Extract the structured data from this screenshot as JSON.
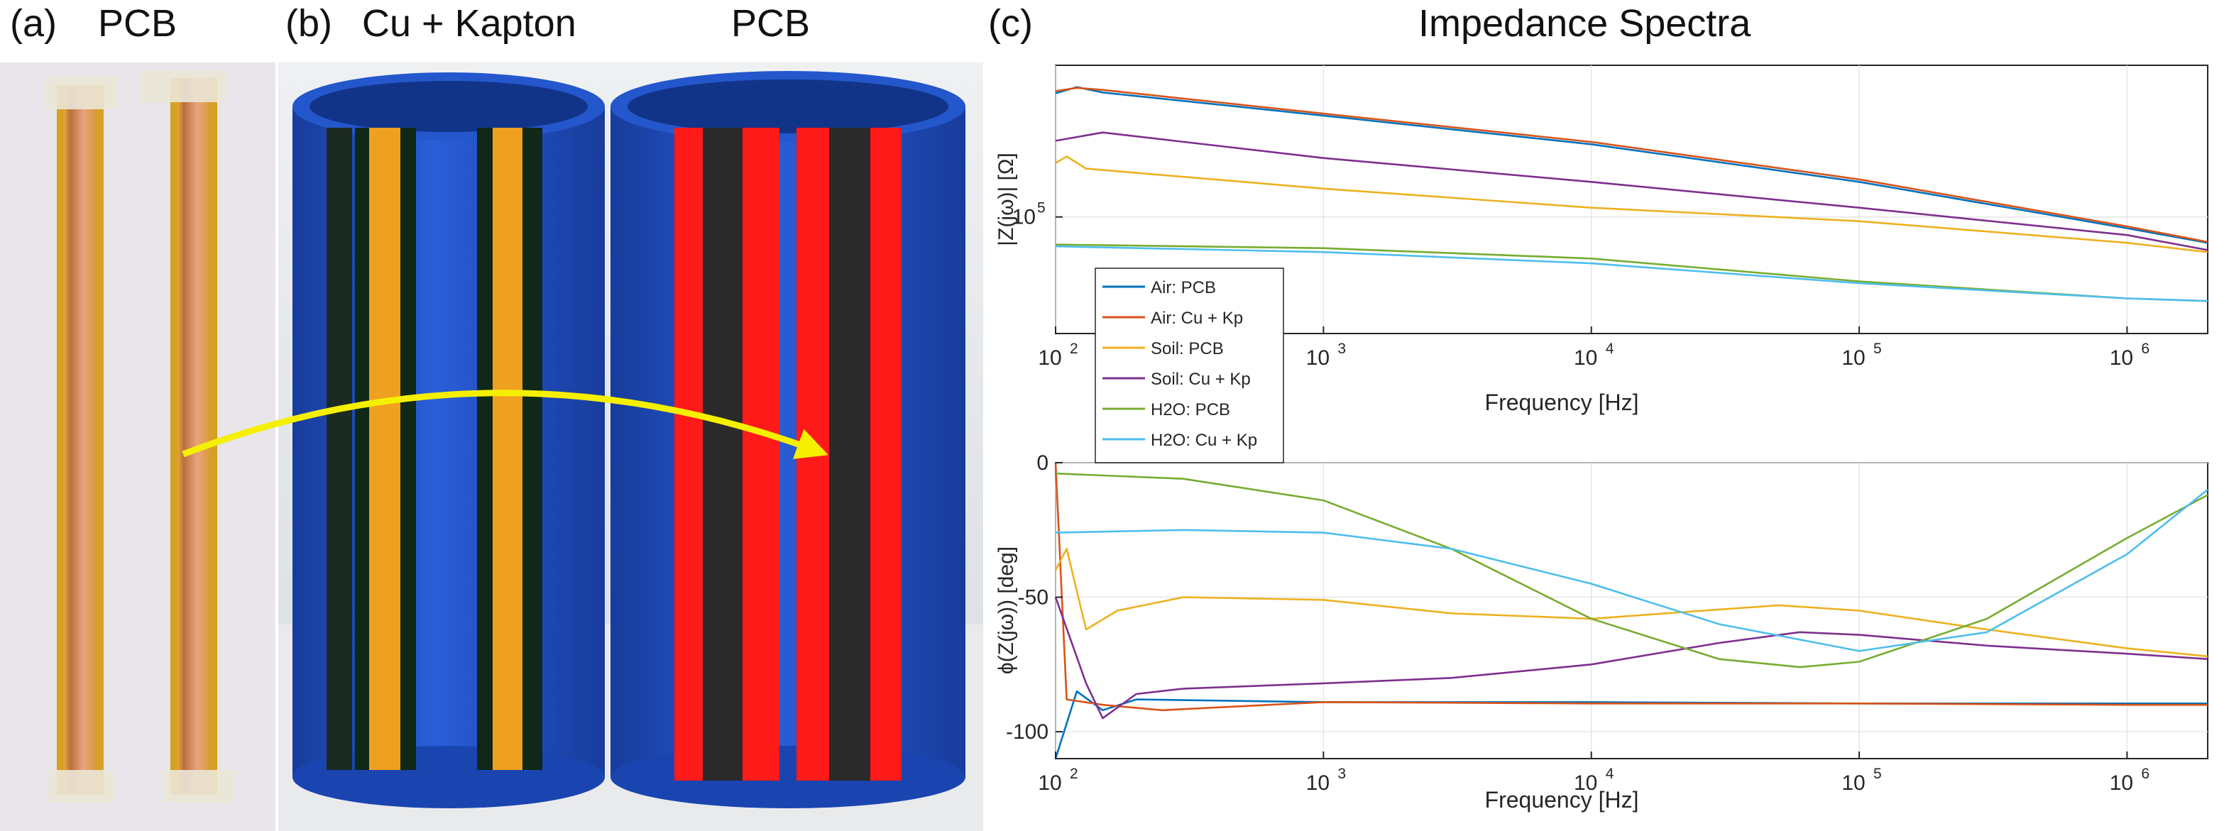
{
  "panels": {
    "a": {
      "letter": "(a)",
      "title": "PCB"
    },
    "b": {
      "letter": "(b)",
      "title_left": "Cu + Kapton",
      "title_right": "PCB"
    },
    "c": {
      "letter": "(c)",
      "title": "Impedance Spectra"
    }
  },
  "colors": {
    "air_pcb": "#0072BD",
    "air_cukp": "#D95319",
    "soil_pcb": "#EDB120",
    "soil_cukp": "#7E2F8E",
    "h2o_pcb": "#77AC30",
    "h2o_cukp": "#4DBEEE",
    "arrow": "#f5f000",
    "pipe_blue": "#1f4fc4",
    "pcb_red": "#ff1a1a",
    "kapton": "#f0a020"
  },
  "chart_data": [
    {
      "type": "line",
      "title": "",
      "xlabel": "Frequency [Hz]",
      "ylabel": "|Z(jω)| [Ω]",
      "xscale": "log",
      "yscale": "log",
      "xlim": [
        100,
        2000000
      ],
      "ylim": [
        10000,
        2000000
      ],
      "xticks": [
        {
          "base": "10",
          "exp": "2"
        },
        {
          "base": "10",
          "exp": "3"
        },
        {
          "base": "10",
          "exp": "4"
        },
        {
          "base": "10",
          "exp": "5"
        },
        {
          "base": "10",
          "exp": "6"
        }
      ],
      "yticks": [
        {
          "value": 100000,
          "base": "10",
          "exp": "5"
        }
      ],
      "legend": "upper-left",
      "series": [
        {
          "key": "air_pcb",
          "name": "Air: PCB",
          "x": [
            100,
            120,
            150,
            1000,
            10000,
            100000,
            1000000,
            2000000
          ],
          "y": [
            1150000,
            1300000,
            1170000,
            740000,
            420000,
            200000,
            80000,
            60000
          ]
        },
        {
          "key": "air_cukp",
          "name": "Air: Cu + Kp",
          "x": [
            100,
            120,
            150,
            1000,
            10000,
            100000,
            1000000,
            2000000
          ],
          "y": [
            1200000,
            1280000,
            1230000,
            770000,
            440000,
            210000,
            83000,
            61000
          ]
        },
        {
          "key": "soil_pcb",
          "name": "Soil: PCB",
          "x": [
            100,
            110,
            130,
            1000,
            10000,
            100000,
            1000000,
            2000000
          ],
          "y": [
            290000,
            330000,
            260000,
            175000,
            120000,
            92000,
            60000,
            50000
          ]
        },
        {
          "key": "soil_cukp",
          "name": "Soil: Cu + Kp",
          "x": [
            100,
            150,
            1000,
            10000,
            100000,
            1000000,
            2000000
          ],
          "y": [
            450000,
            530000,
            320000,
            200000,
            120000,
            70000,
            52000
          ]
        },
        {
          "key": "h2o_pcb",
          "name": "H2O: PCB",
          "x": [
            100,
            1000,
            10000,
            100000,
            1000000,
            2000000
          ],
          "y": [
            58000,
            54000,
            44000,
            28000,
            20000,
            19000
          ]
        },
        {
          "key": "h2o_cukp",
          "name": "H2O: Cu + Kp",
          "x": [
            100,
            1000,
            10000,
            100000,
            1000000,
            2000000
          ],
          "y": [
            56000,
            50000,
            40000,
            27000,
            20000,
            19000
          ]
        }
      ]
    },
    {
      "type": "line",
      "title": "",
      "xlabel": "Frequency [Hz]",
      "ylabel": "ϕ(Z(jω)) [deg]",
      "xscale": "log",
      "xlim": [
        100,
        2000000
      ],
      "ylim": [
        -110,
        0
      ],
      "xticks": [
        {
          "base": "10",
          "exp": "2"
        },
        {
          "base": "10",
          "exp": "3"
        },
        {
          "base": "10",
          "exp": "4"
        },
        {
          "base": "10",
          "exp": "5"
        },
        {
          "base": "10",
          "exp": "6"
        }
      ],
      "yticks": [
        {
          "value": 0,
          "label": "0"
        },
        {
          "value": -50,
          "label": "-50"
        },
        {
          "value": -100,
          "label": "-100"
        }
      ],
      "series": [
        {
          "key": "air_pcb",
          "name": "Air: PCB",
          "x": [
            100,
            120,
            150,
            200,
            1000,
            10000,
            100000,
            1000000,
            2000000
          ],
          "y": [
            -110,
            -85,
            -92,
            -88,
            -89,
            -89,
            -89.5,
            -89.5,
            -89.5
          ]
        },
        {
          "key": "air_cukp",
          "name": "Air: Cu + Kp",
          "x": [
            100,
            110,
            150,
            250,
            1000,
            10000,
            100000,
            1000000,
            2000000
          ],
          "y": [
            0,
            -88,
            -90,
            -92,
            -89,
            -89.5,
            -89.5,
            -90,
            -90
          ]
        },
        {
          "key": "soil_pcb",
          "name": "Soil: PCB",
          "x": [
            100,
            110,
            130,
            170,
            300,
            1000,
            3000,
            10000,
            50000,
            100000,
            300000,
            1000000,
            2000000
          ],
          "y": [
            -40,
            -32,
            -62,
            -55,
            -50,
            -51,
            -56,
            -58,
            -53,
            -55,
            -62,
            -69,
            -72
          ]
        },
        {
          "key": "soil_cukp",
          "name": "Soil: Cu + Kp",
          "x": [
            100,
            130,
            150,
            200,
            300,
            1000,
            3000,
            10000,
            30000,
            60000,
            100000,
            300000,
            1000000,
            2000000
          ],
          "y": [
            -50,
            -82,
            -95,
            -86,
            -84,
            -82,
            -80,
            -75,
            -67,
            -63,
            -64,
            -68,
            -71,
            -73
          ]
        },
        {
          "key": "h2o_pcb",
          "name": "H2O: PCB",
          "x": [
            100,
            300,
            1000,
            3000,
            10000,
            30000,
            60000,
            100000,
            300000,
            1000000,
            2000000
          ],
          "y": [
            -4,
            -6,
            -14,
            -32,
            -58,
            -73,
            -76,
            -74,
            -58,
            -28,
            -12
          ]
        },
        {
          "key": "h2o_cukp",
          "name": "H2O: Cu + Kp",
          "x": [
            100,
            300,
            1000,
            3000,
            10000,
            30000,
            100000,
            300000,
            1000000,
            2000000
          ],
          "y": [
            -26,
            -25,
            -26,
            -32,
            -45,
            -60,
            -70,
            -63,
            -34,
            -10
          ]
        }
      ]
    }
  ]
}
